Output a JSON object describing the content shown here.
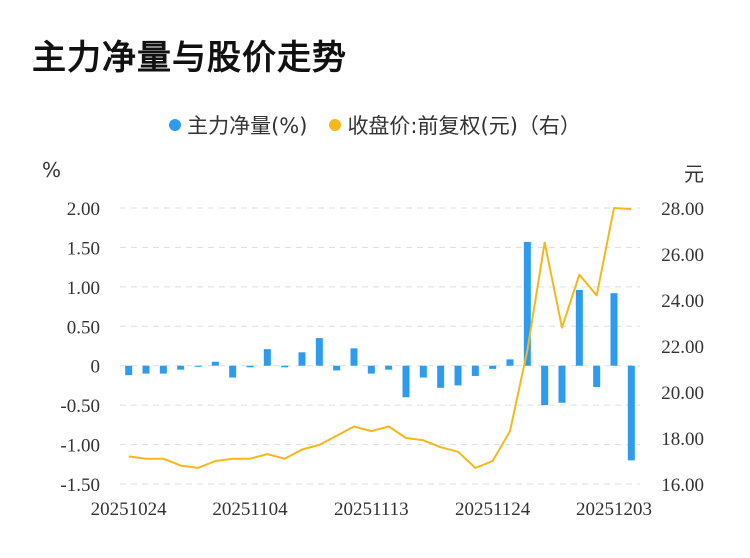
{
  "title": "主力净量与股价走势",
  "legend": {
    "bar_label": "主力净量(%)",
    "line_label": "收盘价:前复权(元)（右）"
  },
  "colors": {
    "bar": "#2d9cef",
    "line": "#f5b81a",
    "grid": "#dddddd"
  },
  "chart_data": {
    "type": "bar+line",
    "title": "主力净量与股价走势",
    "left_unit": "%",
    "right_unit": "元",
    "y_left_ticks": [
      "2.00",
      "1.50",
      "1.00",
      "0.50",
      "0",
      "-0.50",
      "-1.00",
      "-1.50"
    ],
    "y_right_ticks": [
      "28.00",
      "26.00",
      "24.00",
      "22.00",
      "20.00",
      "18.00",
      "16.00"
    ],
    "y_left_range": [
      -1.5,
      2.0
    ],
    "y_right_range": [
      16.0,
      28.0
    ],
    "x_tick_labels": [
      "20251024",
      "20251104",
      "20251113",
      "20251124",
      "20251203"
    ],
    "x_tick_indices": [
      0,
      7,
      14,
      21,
      28
    ],
    "grid": true,
    "legend_position": "top-center",
    "series": [
      {
        "name": "主力净量(%)",
        "type": "bar",
        "axis": "left",
        "values": [
          -0.12,
          -0.1,
          -0.1,
          -0.05,
          0.0,
          0.05,
          -0.15,
          -0.02,
          0.21,
          -0.02,
          0.17,
          0.35,
          -0.06,
          0.22,
          -0.1,
          -0.05,
          -0.4,
          -0.15,
          -0.28,
          -0.25,
          -0.13,
          -0.04,
          0.08,
          1.57,
          -0.5,
          -0.47,
          0.96,
          -0.27,
          0.92,
          -1.2
        ]
      },
      {
        "name": "收盘价:前复权(元)（右）",
        "type": "line",
        "axis": "right",
        "values": [
          17.2,
          17.1,
          17.1,
          16.8,
          16.7,
          17.0,
          17.1,
          17.1,
          17.3,
          17.1,
          17.5,
          17.7,
          18.1,
          18.5,
          18.3,
          18.5,
          18.0,
          17.9,
          17.6,
          17.4,
          16.7,
          17.0,
          18.3,
          21.8,
          26.5,
          22.8,
          25.1,
          24.2,
          28.0,
          27.95
        ]
      }
    ]
  }
}
